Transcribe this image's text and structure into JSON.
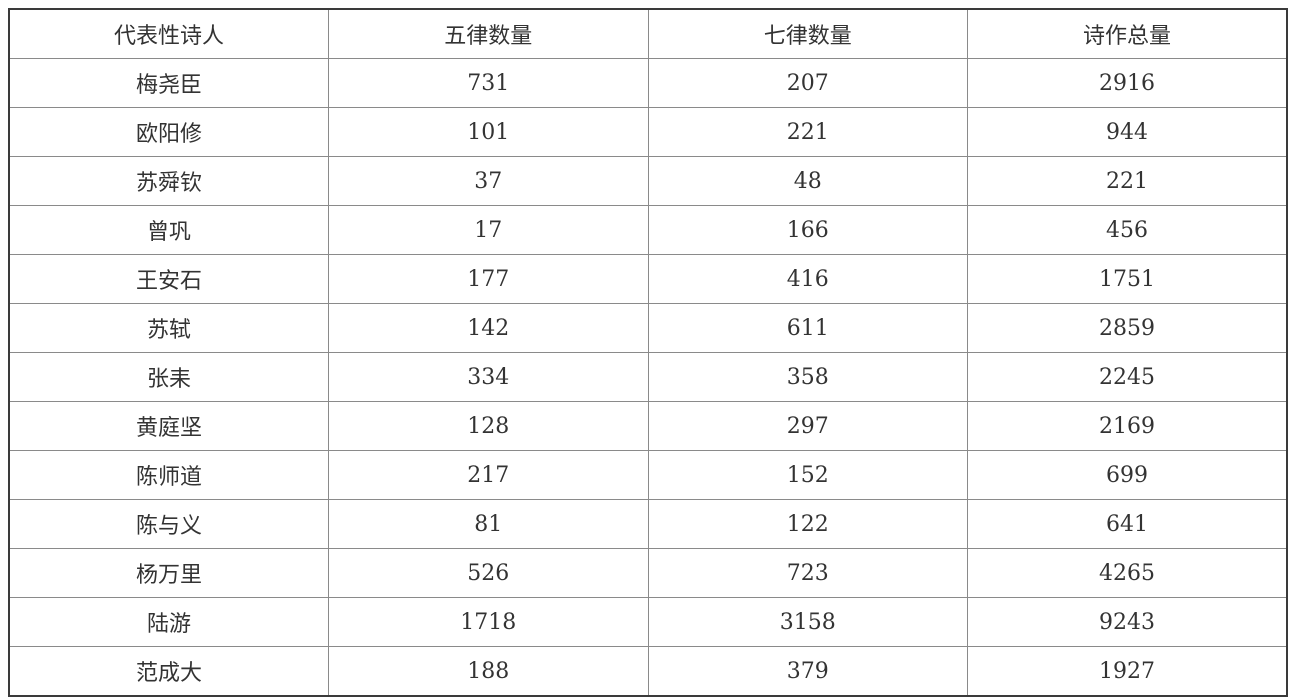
{
  "table": {
    "headers": [
      "代表性诗人",
      "五律数量",
      "七律数量",
      "诗作总量"
    ],
    "rows": [
      [
        "梅尧臣",
        "731",
        "207",
        "2916"
      ],
      [
        "欧阳修",
        "101",
        "221",
        "944"
      ],
      [
        "苏舜钦",
        "37",
        "48",
        "221"
      ],
      [
        "曾巩",
        "17",
        "166",
        "456"
      ],
      [
        "王安石",
        "177",
        "416",
        "1751"
      ],
      [
        "苏轼",
        "142",
        "611",
        "2859"
      ],
      [
        "张耒",
        "334",
        "358",
        "2245"
      ],
      [
        "黄庭坚",
        "128",
        "297",
        "2169"
      ],
      [
        "陈师道",
        "217",
        "152",
        "699"
      ],
      [
        "陈与义",
        "81",
        "122",
        "641"
      ],
      [
        "杨万里",
        "526",
        "723",
        "4265"
      ],
      [
        "陆游",
        "1718",
        "3158",
        "9243"
      ],
      [
        "范成大",
        "188",
        "379",
        "1927"
      ]
    ]
  }
}
